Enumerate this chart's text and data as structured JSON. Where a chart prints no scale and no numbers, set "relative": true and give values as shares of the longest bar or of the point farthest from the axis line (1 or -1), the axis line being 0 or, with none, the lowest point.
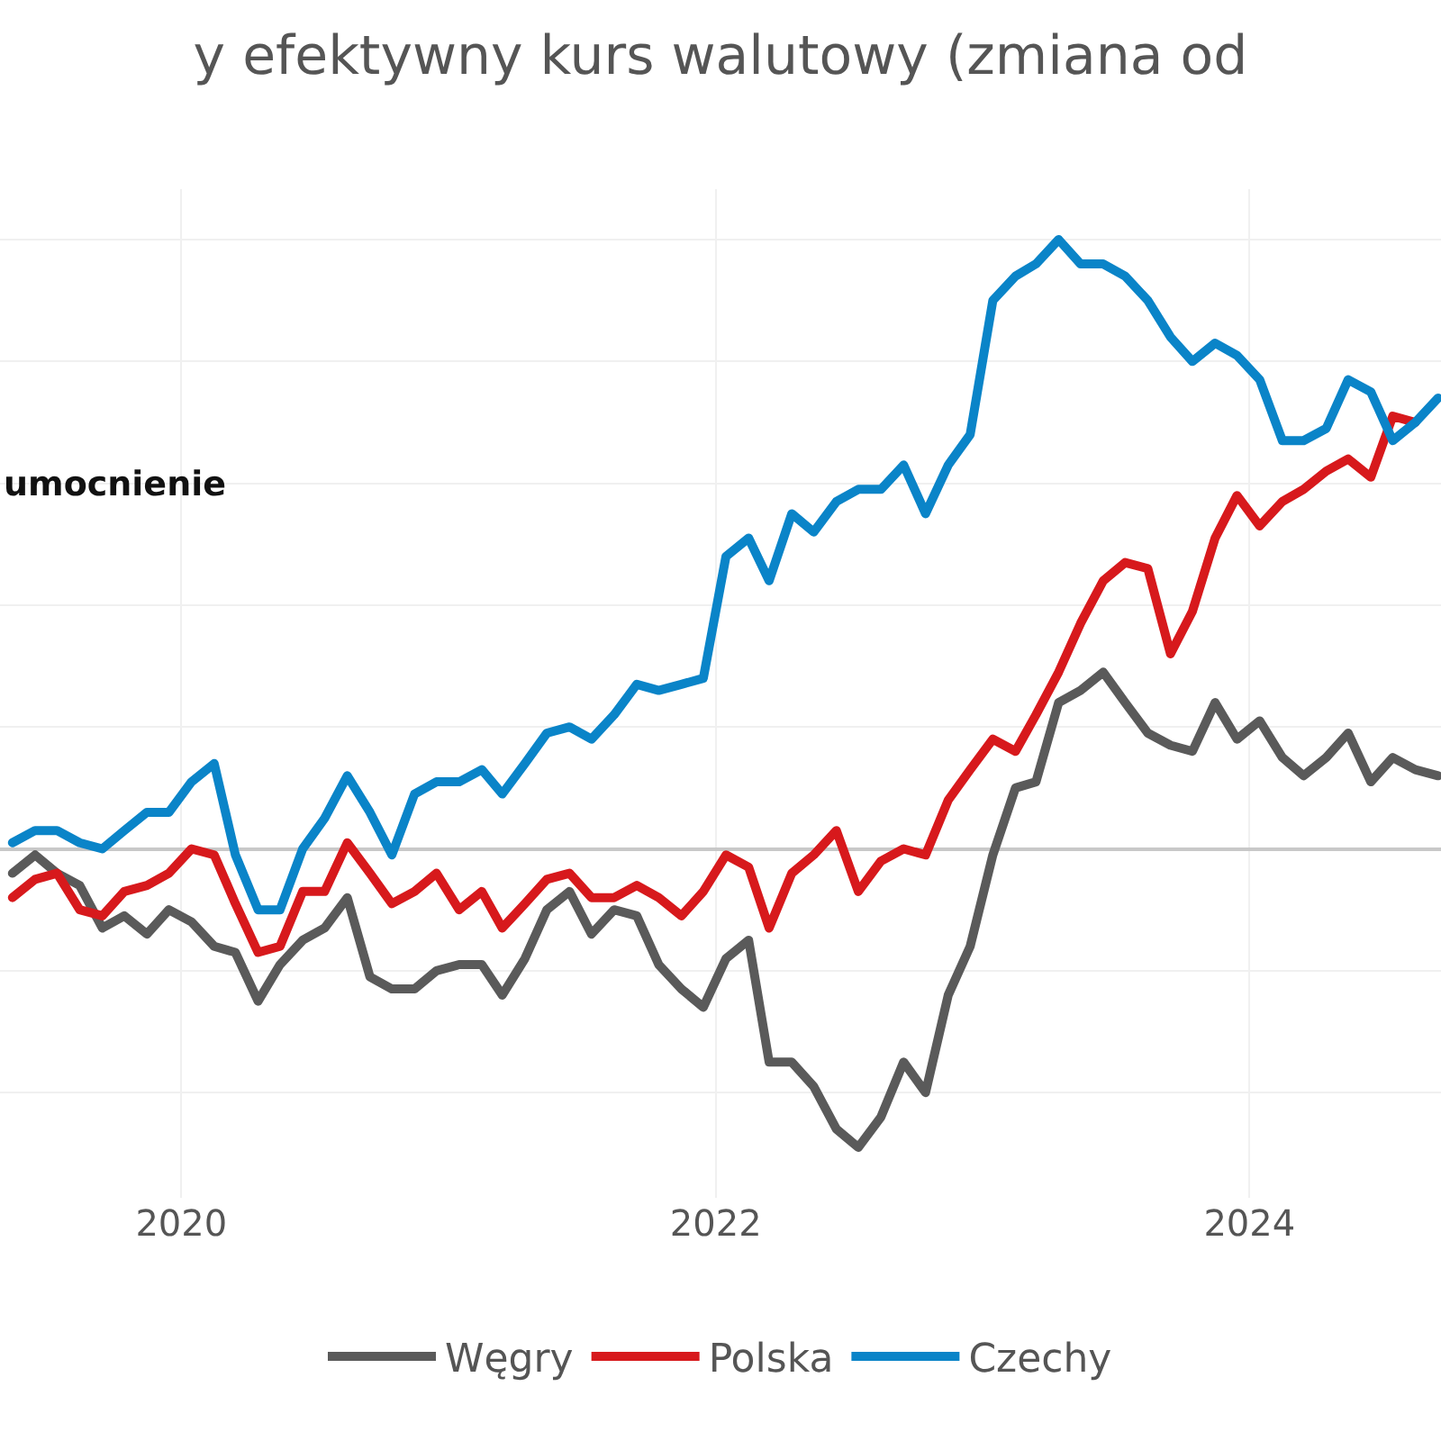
{
  "chart_data": {
    "type": "line",
    "title": "y efektywny kurs walutowy (zmiana od",
    "annotations": [
      "umocnienie"
    ],
    "relative": true,
    "grid": true,
    "legend": "bottom",
    "marker": "none",
    "line_style": "solid",
    "x": [
      "2019-05-15",
      "2019-06-15",
      "2019-07-15",
      "2019-08-15",
      "2019-09-15",
      "2019-10-15",
      "2019-11-15",
      "2019-12-15",
      "2020-01-15",
      "2020-02-15",
      "2020-03-15",
      "2020-04-15",
      "2020-05-15",
      "2020-06-15",
      "2020-07-15",
      "2020-08-15",
      "2020-09-15",
      "2020-10-15",
      "2020-11-15",
      "2020-12-15",
      "2021-01-15",
      "2021-02-15",
      "2021-03-15",
      "2021-04-15",
      "2021-05-15",
      "2021-06-15",
      "2021-07-15",
      "2021-08-15",
      "2021-09-15",
      "2021-10-15",
      "2021-11-15",
      "2021-12-15",
      "2022-01-15",
      "2022-02-15",
      "2022-03-15",
      "2022-04-15",
      "2022-05-15",
      "2022-06-15",
      "2022-07-15",
      "2022-08-15",
      "2022-09-15",
      "2022-10-15",
      "2022-11-15",
      "2022-12-15",
      "2023-01-15",
      "2023-02-15",
      "2023-03-15",
      "2023-04-15",
      "2023-05-15",
      "2023-06-15",
      "2023-07-15",
      "2023-08-15",
      "2023-09-15",
      "2023-10-15",
      "2023-11-15",
      "2023-12-15",
      "2024-01-15",
      "2024-02-15",
      "2024-03-15",
      "2024-04-15",
      "2024-05-15",
      "2024-06-15",
      "2024-07-15",
      "2024-08-15",
      "2024-09-15"
    ],
    "xlim": [
      "2019-04-28",
      "2024-09-19"
    ],
    "xticks": [
      {
        "value": "2020-01-01",
        "label": "2020"
      },
      {
        "value": "2022-01-01",
        "label": "2022"
      },
      {
        "value": "2024-01-01",
        "label": "2024"
      }
    ],
    "series": [
      {
        "name": "Węgry",
        "color": "#5a5a5a",
        "values": [
          -0.04,
          -0.01,
          -0.04,
          -0.06,
          -0.13,
          -0.11,
          -0.14,
          -0.1,
          -0.12,
          -0.16,
          -0.17,
          -0.25,
          -0.19,
          -0.15,
          -0.13,
          -0.08,
          -0.21,
          -0.23,
          -0.23,
          -0.2,
          -0.19,
          -0.19,
          -0.24,
          -0.18,
          -0.1,
          -0.07,
          -0.14,
          -0.1,
          -0.11,
          -0.19,
          -0.23,
          -0.26,
          -0.18,
          -0.15,
          -0.35,
          -0.35,
          -0.39,
          -0.46,
          -0.49,
          -0.44,
          -0.35,
          -0.4,
          -0.24,
          -0.16,
          -0.01,
          0.1,
          0.11,
          0.24,
          0.26,
          0.29,
          0.24,
          0.19,
          0.17,
          0.16,
          0.24,
          0.18,
          0.21,
          0.15,
          0.12,
          0.15,
          0.19,
          0.11,
          0.15,
          0.13,
          0.12
        ]
      },
      {
        "name": "Polska",
        "color": "#d7191c",
        "values": [
          -0.08,
          -0.05,
          -0.04,
          -0.1,
          -0.11,
          -0.07,
          -0.06,
          -0.04,
          0.0,
          -0.01,
          -0.09,
          -0.17,
          -0.16,
          -0.07,
          -0.07,
          0.01,
          -0.04,
          -0.09,
          -0.07,
          -0.04,
          -0.1,
          -0.07,
          -0.13,
          -0.09,
          -0.05,
          -0.04,
          -0.08,
          -0.08,
          -0.06,
          -0.08,
          -0.11,
          -0.07,
          -0.01,
          -0.03,
          -0.13,
          -0.04,
          -0.01,
          0.03,
          -0.07,
          -0.02,
          0.0,
          -0.01,
          0.08,
          0.13,
          0.18,
          0.16,
          0.22,
          0.29,
          0.37,
          0.44,
          0.47,
          0.46,
          0.32,
          0.39,
          0.51,
          0.58,
          0.53,
          0.57,
          0.59,
          0.62,
          0.64,
          0.61,
          0.71,
          0.7,
          null
        ]
      },
      {
        "name": "Czechy",
        "color": "#0a84c8",
        "values": [
          0.01,
          0.03,
          0.03,
          0.01,
          0.0,
          0.03,
          0.06,
          0.06,
          0.11,
          0.14,
          -0.01,
          -0.1,
          -0.1,
          0.0,
          0.05,
          0.12,
          0.06,
          -0.01,
          0.09,
          0.11,
          0.11,
          0.13,
          0.09,
          0.14,
          0.19,
          0.2,
          0.18,
          0.22,
          0.27,
          0.26,
          0.27,
          0.28,
          0.48,
          0.51,
          0.44,
          0.55,
          0.52,
          0.57,
          0.59,
          0.59,
          0.63,
          0.55,
          0.63,
          0.68,
          0.9,
          0.94,
          0.96,
          1.0,
          0.96,
          0.96,
          0.94,
          0.9,
          0.84,
          0.8,
          0.83,
          0.81,
          0.77,
          0.67,
          0.67,
          0.69,
          0.77,
          0.75,
          0.67,
          0.7,
          0.74
        ]
      }
    ]
  }
}
